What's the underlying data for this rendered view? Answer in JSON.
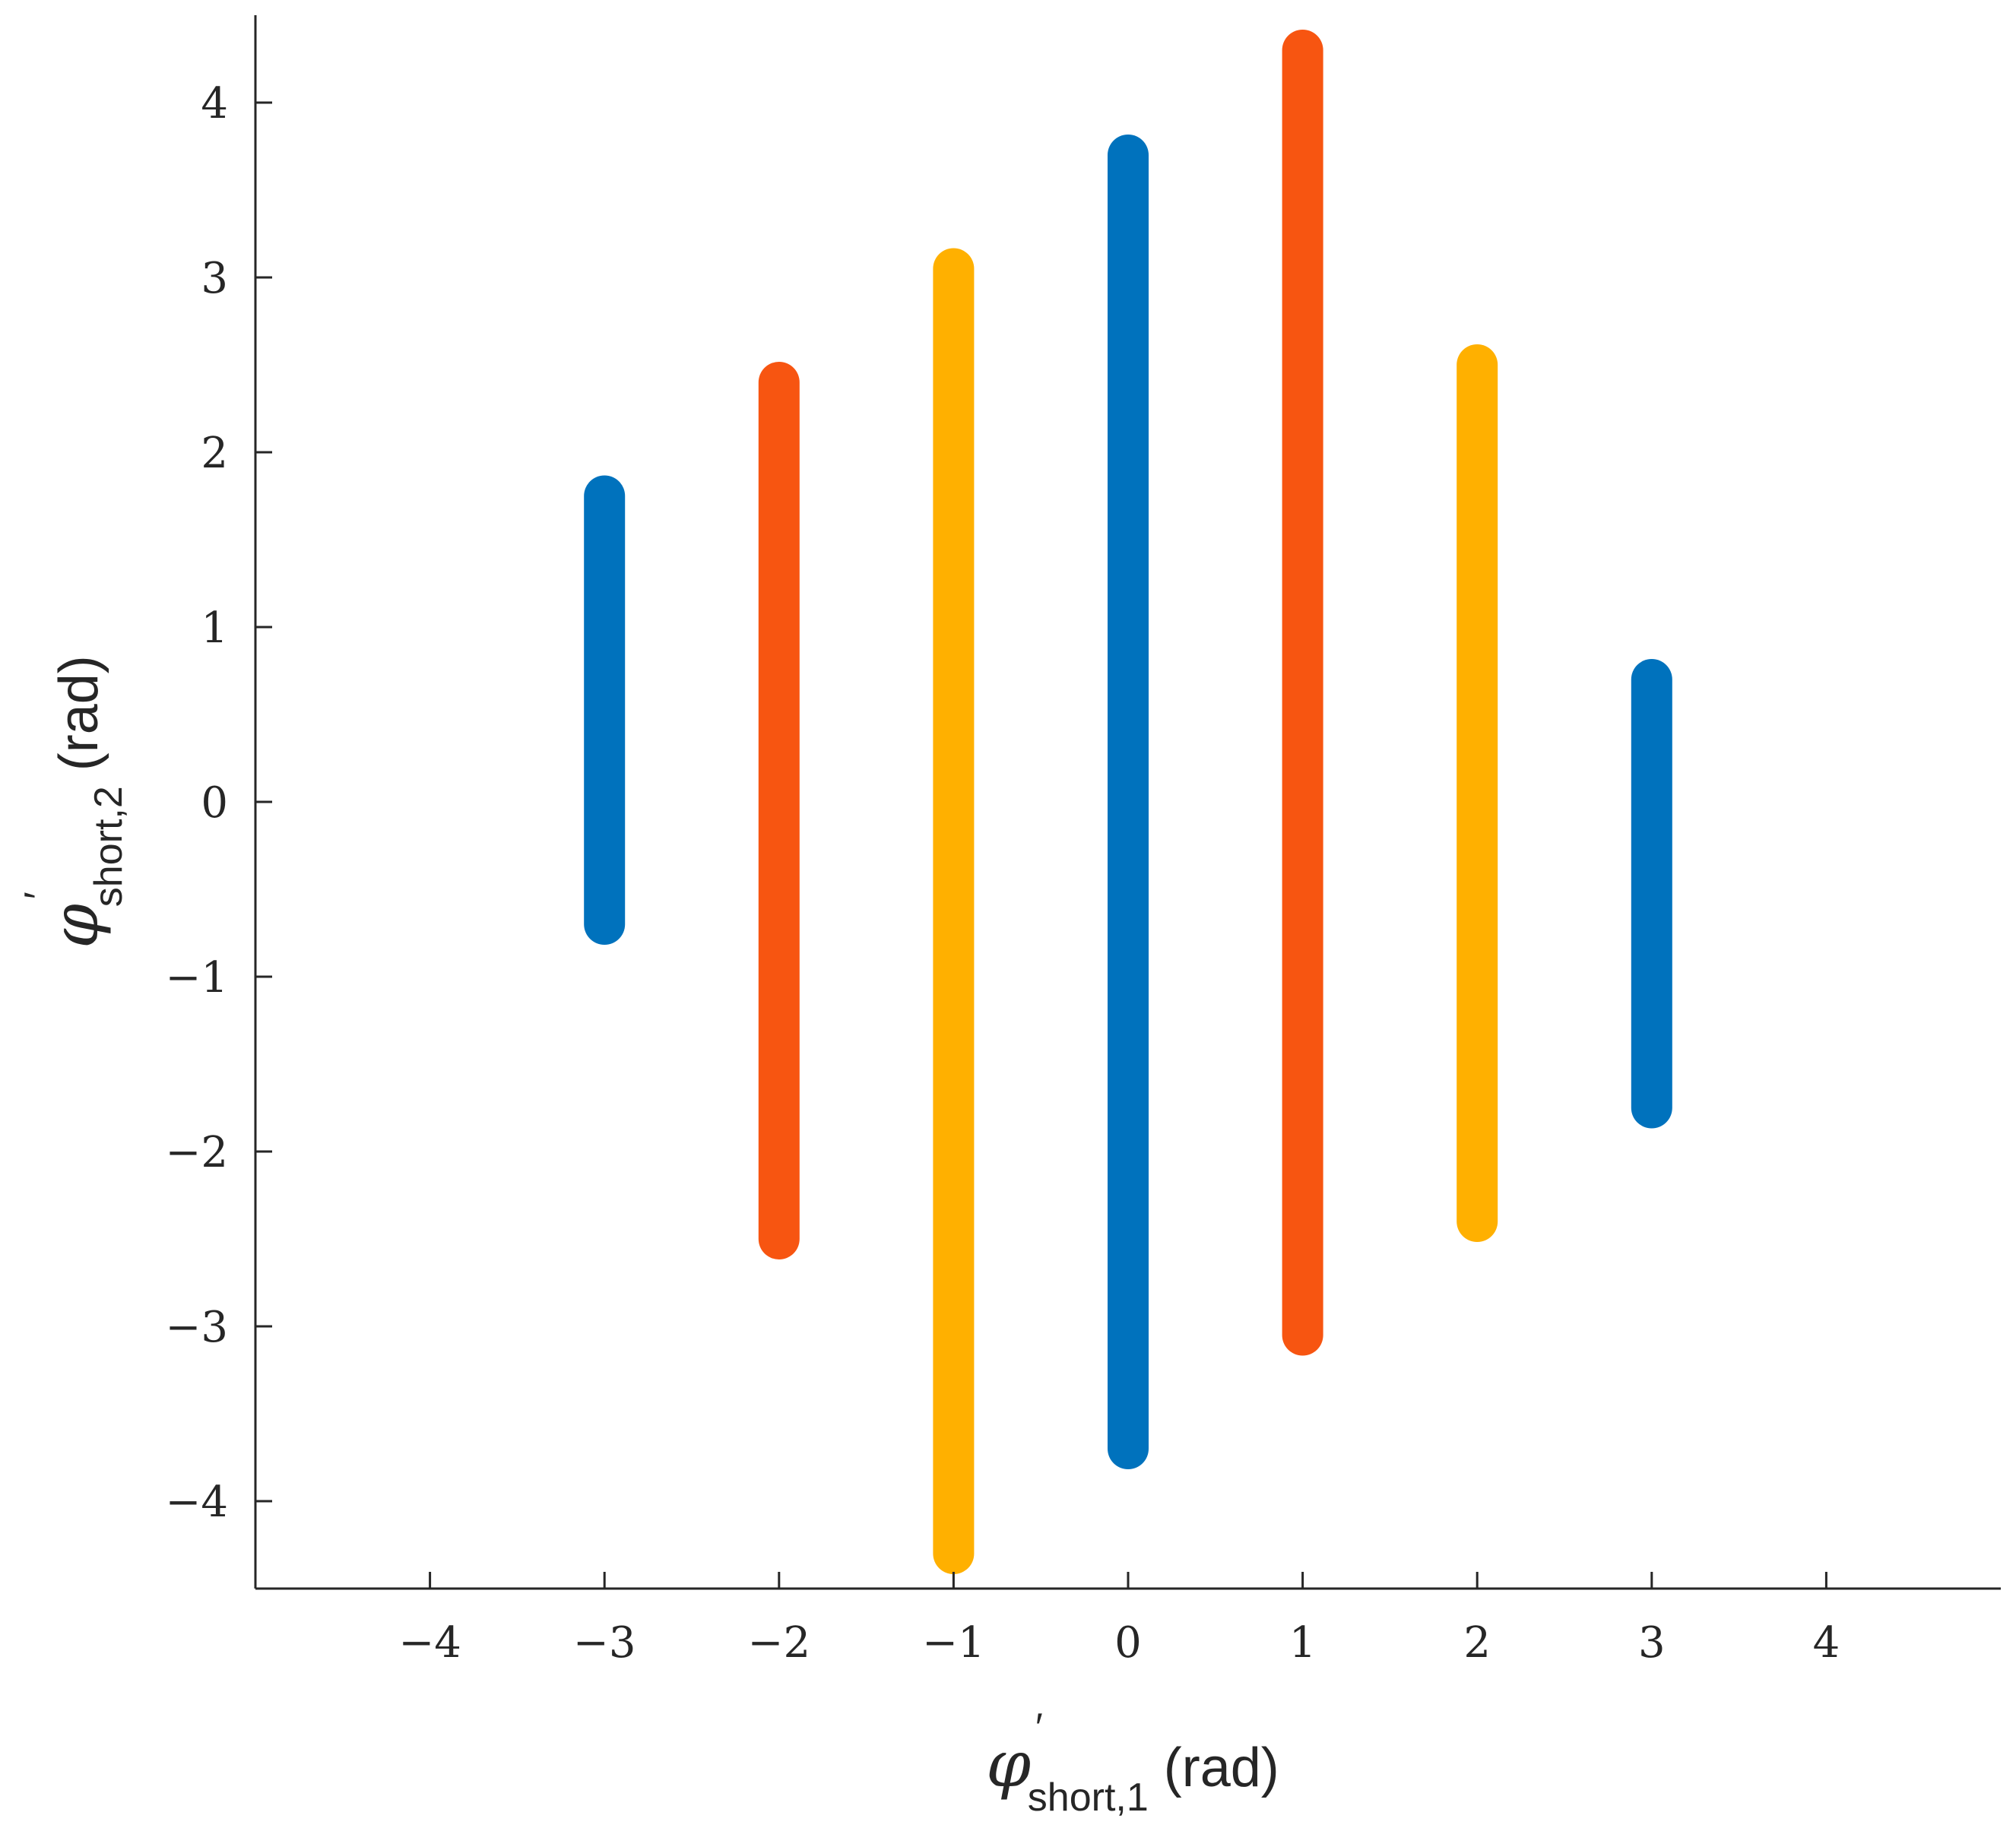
{
  "chart_data": {
    "type": "line",
    "title": "",
    "xlabel": {
      "symbol": "φ",
      "prime": "′",
      "subscript": "short,1",
      "unit": "(rad)"
    },
    "ylabel": {
      "symbol": "φ",
      "prime": "′",
      "subscript": "short,2",
      "unit": "(rad)"
    },
    "xlim": [
      -5,
      5
    ],
    "ylim": [
      -4.5,
      4.5
    ],
    "xticks": [
      -4,
      -3,
      -2,
      -1,
      0,
      1,
      2,
      3,
      4
    ],
    "xtick_labels": [
      "−4",
      "−3",
      "−2",
      "−1",
      "0",
      "1",
      "2",
      "3",
      "4"
    ],
    "yticks": [
      -4,
      -3,
      -2,
      -1,
      0,
      1,
      2,
      3,
      4
    ],
    "ytick_labels": [
      "−4",
      "−3",
      "−2",
      "−1",
      "0",
      "1",
      "2",
      "3",
      "4"
    ],
    "grid": false,
    "legend": "none",
    "colors": [
      "#0072BD",
      "#F75511",
      "#FFB000"
    ],
    "segments": [
      {
        "x": -3,
        "y_min": -0.7,
        "y_max": 1.75,
        "color": "#0072BD"
      },
      {
        "x": -2,
        "y_min": -2.5,
        "y_max": 2.4,
        "color": "#F75511"
      },
      {
        "x": -1,
        "y_min": -4.3,
        "y_max": 3.05,
        "color": "#FFB000"
      },
      {
        "x": 0,
        "y_min": -3.7,
        "y_max": 3.7,
        "color": "#0072BD"
      },
      {
        "x": 1,
        "y_min": -3.05,
        "y_max": 4.3,
        "color": "#F75511"
      },
      {
        "x": 2,
        "y_min": -2.4,
        "y_max": 2.5,
        "color": "#FFB000"
      },
      {
        "x": 3,
        "y_min": -1.75,
        "y_max": 0.7,
        "color": "#0072BD"
      }
    ]
  }
}
